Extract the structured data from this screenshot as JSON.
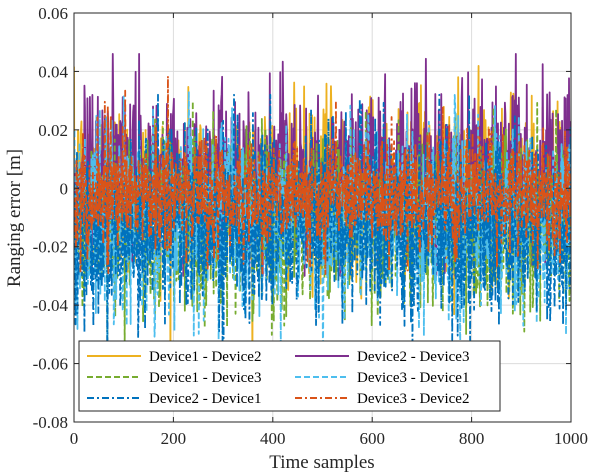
{
  "chart_data": {
    "type": "line",
    "xlabel": "Time samples",
    "ylabel": "Ranging error [m]",
    "xlim": [
      0,
      1000
    ],
    "ylim": [
      -0.08,
      0.06
    ],
    "xticks": [
      0,
      200,
      400,
      600,
      800,
      1000
    ],
    "xtick_labels": [
      "0",
      "200",
      "400",
      "600",
      "800",
      "1000"
    ],
    "yticks": [
      -0.08,
      -0.06,
      -0.04,
      -0.02,
      0,
      0.02,
      0.04,
      0.06
    ],
    "ytick_labels": [
      "-0.08",
      "-0.06",
      "-0.04",
      "-0.02",
      "0",
      "0.02",
      "0.04",
      "0.06"
    ],
    "grid": true,
    "legend_position": "bottom-left",
    "n_samples": 1000,
    "series": [
      {
        "name": "Device1 - Device2",
        "color": "#EDB120",
        "dash": "solid",
        "mean": 0.0,
        "std": 0.015,
        "max": 0.045,
        "min": -0.06
      },
      {
        "name": "Device2 - Device3",
        "color": "#7E2F8E",
        "dash": "solid",
        "mean": 0.005,
        "std": 0.015,
        "max": 0.046,
        "min": -0.03
      },
      {
        "name": "Device1 - Device3",
        "color": "#77AC30",
        "dash": "dashed",
        "mean": -0.012,
        "std": 0.016,
        "max": 0.044,
        "min": -0.055
      },
      {
        "name": "Device3 - Device1",
        "color": "#4DBEEE",
        "dash": "dashed",
        "mean": -0.01,
        "std": 0.016,
        "max": 0.054,
        "min": -0.06
      },
      {
        "name": "Device2 - Device1",
        "color": "#0072BD",
        "dash": "dashdot",
        "mean": -0.013,
        "std": 0.016,
        "max": 0.032,
        "min": -0.058
      },
      {
        "name": "Device3 - Device2",
        "color": "#D95319",
        "dash": "dashdot",
        "mean": -0.002,
        "std": 0.01,
        "max": 0.047,
        "min": -0.045
      }
    ]
  }
}
